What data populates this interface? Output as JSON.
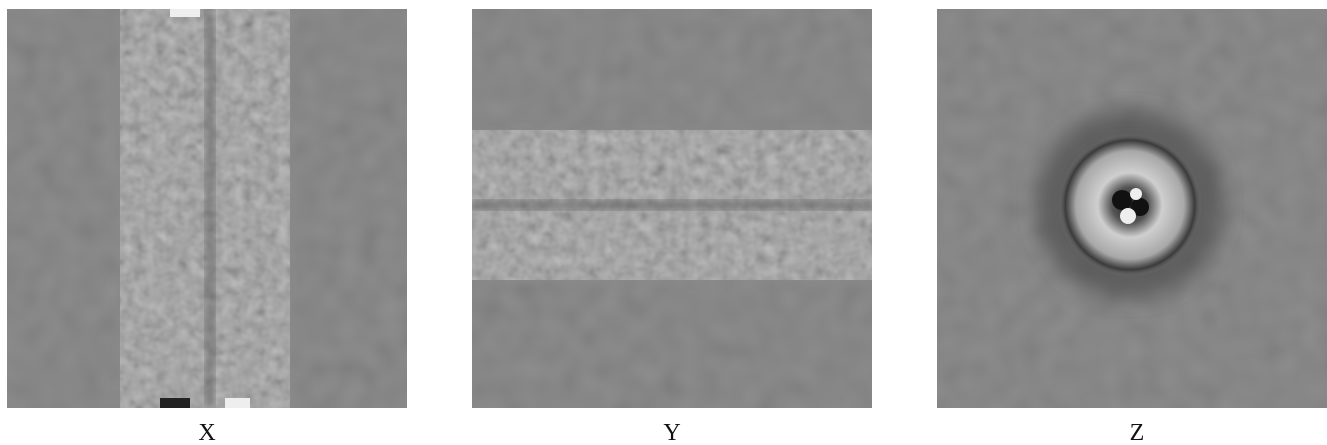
{
  "panels": [
    {
      "label": "X"
    },
    {
      "label": "Y"
    },
    {
      "label": "Z"
    }
  ]
}
